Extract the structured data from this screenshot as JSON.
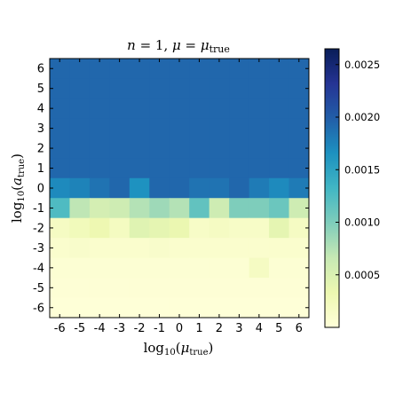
{
  "chart_data": {
    "type": "heatmap",
    "title": "n = 1,  μ = μ_true",
    "title_parts": {
      "lhs": "n",
      "mid": " = 1,  ",
      "mu": "μ",
      "eq": " = ",
      "mu2": "μ",
      "sub": "true"
    },
    "xlabel": {
      "fn": "log",
      "base": "10",
      "open": "(",
      "sym": "μ",
      "sub": "true",
      "close": ")"
    },
    "ylabel": {
      "fn": "log",
      "base": "10",
      "open": "(",
      "sym": "a",
      "sub": "true",
      "close": ")"
    },
    "x_ticks": [
      "-6",
      "-5",
      "-4",
      "-3",
      "-2",
      "-1",
      "0",
      "1",
      "2",
      "3",
      "4",
      "5",
      "6"
    ],
    "y_ticks": [
      "6",
      "5",
      "4",
      "3",
      "2",
      "1",
      "0",
      "-1",
      "-2",
      "-3",
      "-4",
      "-5",
      "-6"
    ],
    "colormap": "YlGnBu",
    "colorbar": {
      "ticks": [
        0.0005,
        0.001,
        0.0015,
        0.002,
        0.0025
      ],
      "tick_labels": [
        "0.0005",
        "0.0010",
        "0.0015",
        "0.0020",
        "0.0025"
      ],
      "range": [
        0.0,
        0.00265
      ]
    },
    "row_order": "top-to-bottom (log10 a_true = 6 to -6)",
    "values": [
      [
        0.00193,
        0.00193,
        0.00193,
        0.00193,
        0.00193,
        0.00193,
        0.00193,
        0.00193,
        0.00193,
        0.00193,
        0.00193,
        0.00193,
        0.00193
      ],
      [
        0.00193,
        0.00193,
        0.00193,
        0.00193,
        0.00193,
        0.00193,
        0.00193,
        0.00193,
        0.00193,
        0.00193,
        0.00193,
        0.00193,
        0.00193
      ],
      [
        0.00193,
        0.00193,
        0.00193,
        0.00193,
        0.00193,
        0.00193,
        0.00193,
        0.00193,
        0.00193,
        0.00193,
        0.00193,
        0.00193,
        0.00193
      ],
      [
        0.00193,
        0.00193,
        0.00193,
        0.00193,
        0.00193,
        0.00193,
        0.00193,
        0.00193,
        0.00193,
        0.00193,
        0.00193,
        0.00193,
        0.00193
      ],
      [
        0.00193,
        0.00193,
        0.00193,
        0.00193,
        0.00193,
        0.00193,
        0.00193,
        0.00193,
        0.00193,
        0.00193,
        0.00193,
        0.00193,
        0.00193
      ],
      [
        0.00193,
        0.00193,
        0.00193,
        0.00193,
        0.00193,
        0.00193,
        0.00193,
        0.00193,
        0.00193,
        0.00193,
        0.00193,
        0.00193,
        0.00193
      ],
      [
        0.0017,
        0.00175,
        0.00185,
        0.00193,
        0.00165,
        0.00193,
        0.00193,
        0.00185,
        0.00185,
        0.00193,
        0.0018,
        0.0017,
        0.0018
      ],
      [
        0.00125,
        0.0007,
        0.00055,
        0.0006,
        0.00075,
        0.00085,
        0.00075,
        0.00115,
        0.0006,
        0.001,
        0.001,
        0.0011,
        0.0006
      ],
      [
        0.00018,
        0.00025,
        0.00032,
        0.0002,
        0.00045,
        0.0004,
        0.00035,
        0.00015,
        0.00018,
        0.00015,
        0.00015,
        0.0004,
        0.00018
      ],
      [
        0.0001,
        0.00012,
        0.0001,
        0.0001,
        0.0001,
        0.00012,
        0.0001,
        0.0001,
        0.0001,
        0.0001,
        0.0001,
        0.0001,
        0.0001
      ],
      [
        5e-05,
        5e-05,
        5e-05,
        5e-05,
        5e-05,
        5e-05,
        5e-05,
        5e-05,
        5e-05,
        5e-05,
        0.00018,
        5e-05,
        5e-05
      ],
      [
        3e-05,
        3e-05,
        3e-05,
        3e-05,
        3e-05,
        3e-05,
        3e-05,
        3e-05,
        3e-05,
        3e-05,
        3e-05,
        3e-05,
        3e-05
      ],
      [
        2e-05,
        2e-05,
        2e-05,
        2e-05,
        2e-05,
        2e-05,
        2e-05,
        2e-05,
        2e-05,
        2e-05,
        2e-05,
        2e-05,
        2e-05
      ]
    ]
  }
}
